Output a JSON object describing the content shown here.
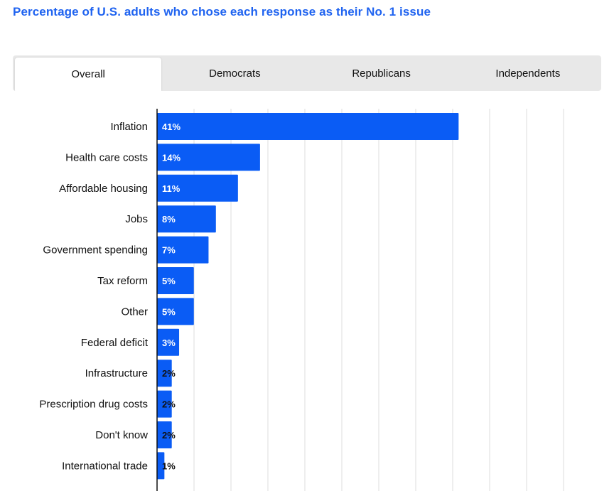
{
  "title": "Percentage of U.S. adults who chose each response as their No. 1 issue",
  "tabs": [
    {
      "label": "Overall",
      "active": true
    },
    {
      "label": "Democrats",
      "active": false
    },
    {
      "label": "Republicans",
      "active": false
    },
    {
      "label": "Independents",
      "active": false
    }
  ],
  "colors": {
    "bar": "#0a5cf5",
    "title": "#1f63f0",
    "grid": "#dcdcdc",
    "tab_bg": "#e8e8e8"
  },
  "chart_data": {
    "type": "bar",
    "orientation": "horizontal",
    "categories": [
      "Inflation",
      "Health care costs",
      "Affordable housing",
      "Jobs",
      "Government spending",
      "Tax reform",
      "Other",
      "Federal deficit",
      "Infrastructure",
      "Prescription drug costs",
      "Don't know",
      "International trade"
    ],
    "values": [
      41,
      14,
      11,
      8,
      7,
      5,
      5,
      3,
      2,
      2,
      2,
      1
    ],
    "value_labels": [
      "41%",
      "14%",
      "11%",
      "8%",
      "7%",
      "5%",
      "5%",
      "3%",
      "2%",
      "2%",
      "2%",
      "1%"
    ],
    "xlim": [
      0,
      60
    ],
    "grid": true,
    "legend": "none"
  }
}
